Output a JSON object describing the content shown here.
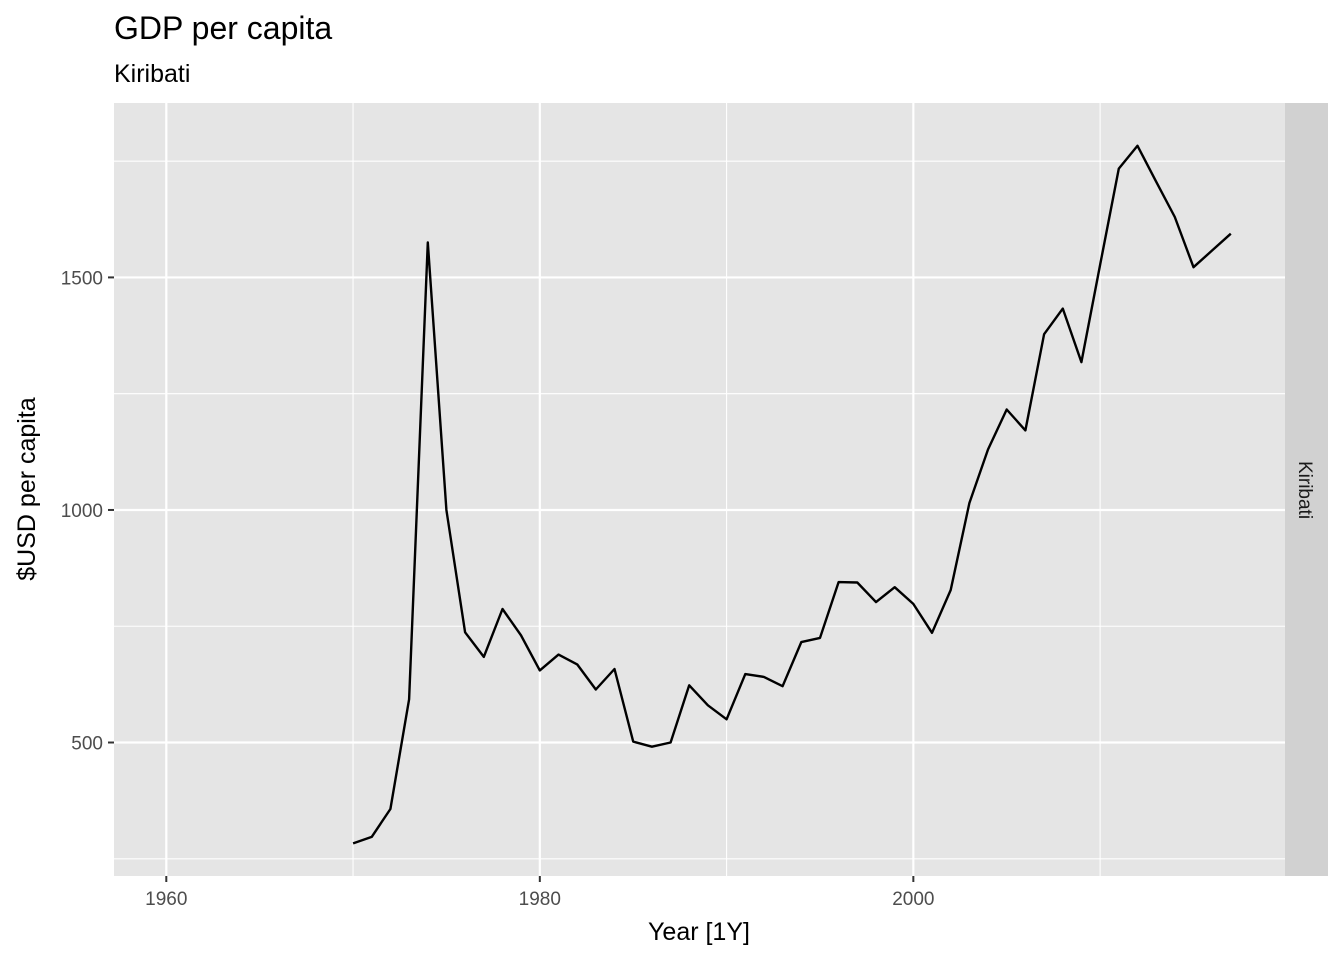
{
  "chart_data": {
    "type": "line",
    "title": "GDP per capita",
    "subtitle": "Kiribati",
    "xlabel": "Year [1Y]",
    "ylabel": "$USD per capita",
    "facet_label": "Kiribati",
    "xlim": [
      1957.2,
      2019.9
    ],
    "ylim": [
      213,
      1875
    ],
    "x_ticks": [
      1960,
      1980,
      2000
    ],
    "x_minor_ticks": [
      1970,
      1990,
      2010
    ],
    "y_ticks": [
      500,
      1000,
      1500
    ],
    "y_minor_ticks": [
      250,
      750,
      1250,
      1750
    ],
    "grid": true,
    "line_color": "#000000",
    "panel_color": "#e5e5e5",
    "strip_color": "#d1d1d1",
    "series": [
      {
        "x": [
          1970,
          1971,
          1972,
          1973,
          1974,
          1975,
          1976,
          1977,
          1978,
          1979,
          1980,
          1981,
          1982,
          1983,
          1984,
          1985,
          1986,
          1987,
          1988,
          1989,
          1990,
          1991,
          1992,
          1993,
          1994,
          1995,
          1996,
          1997,
          1998,
          1999,
          2000,
          2001,
          2002,
          2003,
          2004,
          2005,
          2006,
          2007,
          2008,
          2009,
          2010,
          2011,
          2012,
          2013,
          2014,
          2015,
          2016,
          2017
        ],
        "values": [
          283,
          297,
          357,
          593,
          1575,
          1000,
          737,
          684,
          787,
          730,
          655,
          689,
          668,
          614,
          658,
          502,
          491,
          500,
          623,
          580,
          550,
          647,
          641,
          621,
          716,
          725,
          845,
          844,
          802,
          834,
          798,
          736,
          828,
          1015,
          1130,
          1216,
          1171,
          1378,
          1433,
          1318,
          1527,
          1734,
          1783,
          1706,
          1630,
          1522,
          1558,
          1594
        ]
      }
    ]
  }
}
